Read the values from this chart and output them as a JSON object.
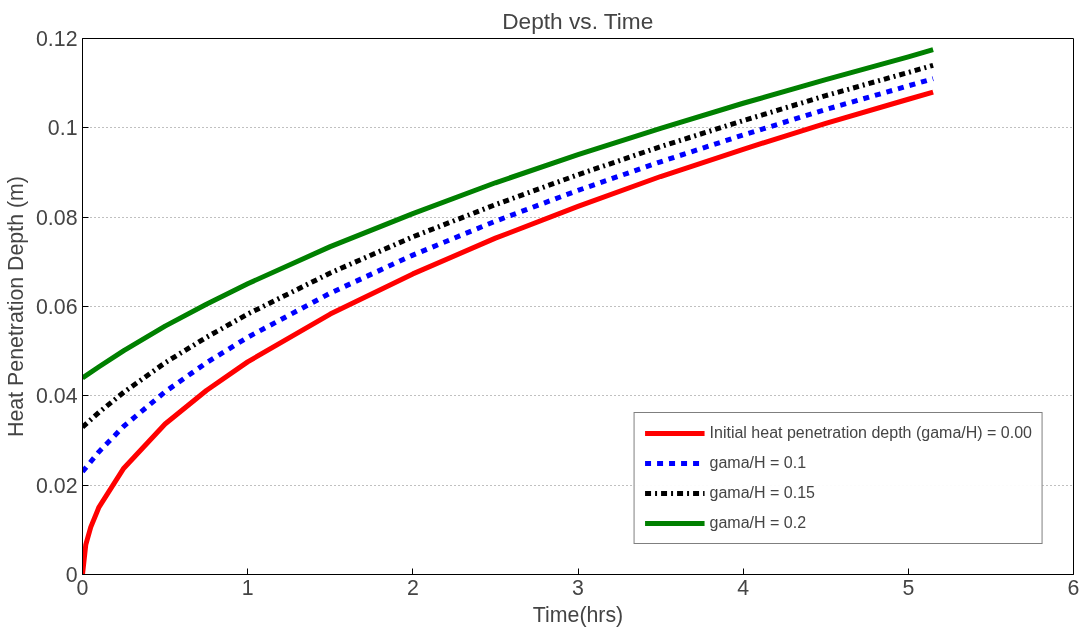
{
  "chart_data": {
    "type": "line",
    "title": "Depth vs. Time",
    "xlabel": "Time(hrs)",
    "ylabel": "Heat Penetration Depth (m)",
    "x": [
      0,
      0.1,
      0.25,
      0.5,
      0.75,
      1,
      1.5,
      2,
      2.5,
      3,
      3.5,
      4,
      4.5,
      5,
      5.15
    ],
    "series": [
      {
        "name": "Initial heat penetration depth (gama/H) = 0.00",
        "color": "#ff0000",
        "line_style": "solid",
        "x": [
          0,
          0.02,
          0.05,
          0.1,
          0.25,
          0.5,
          0.75,
          1,
          1.5,
          2,
          2.5,
          3,
          3.5,
          4,
          4.5,
          5,
          5.15
        ],
        "values": [
          0,
          0.0067,
          0.0106,
          0.0151,
          0.0238,
          0.0337,
          0.0412,
          0.0476,
          0.0583,
          0.0673,
          0.0753,
          0.0824,
          0.0891,
          0.0952,
          0.101,
          0.1064,
          0.108
        ]
      },
      {
        "name": "gama/H = 0.1",
        "color": "#0000ff",
        "line_style": "dashed",
        "values": [
          0.023,
          0.0275,
          0.0332,
          0.0409,
          0.0474,
          0.0531,
          0.063,
          0.0715,
          0.0791,
          0.086,
          0.0924,
          0.0984,
          0.1041,
          0.1094,
          0.111
        ]
      },
      {
        "name": "gama/H = 0.15",
        "color": "#000000",
        "line_style": "dashdot",
        "values": [
          0.033,
          0.0363,
          0.0408,
          0.0474,
          0.0531,
          0.0583,
          0.0675,
          0.0756,
          0.0828,
          0.0895,
          0.0958,
          0.1016,
          0.1072,
          0.1124,
          0.114
        ]
      },
      {
        "name": "gama/H = 0.2",
        "color": "#008000",
        "line_style": "solid",
        "values": [
          0.044,
          0.0465,
          0.0501,
          0.0556,
          0.0605,
          0.0651,
          0.0734,
          0.0808,
          0.0877,
          0.094,
          0.0999,
          0.1055,
          0.1108,
          0.1159,
          0.1175
        ]
      }
    ],
    "xlim": [
      0,
      6
    ],
    "xticks": [
      0,
      1,
      2,
      3,
      4,
      5,
      6
    ],
    "ylim": [
      0,
      0.12
    ],
    "yticks": [
      0,
      0.02,
      0.04,
      0.06,
      0.08,
      0.1,
      0.12
    ],
    "grid": "y",
    "legend": "bottom right",
    "marker": "none"
  }
}
